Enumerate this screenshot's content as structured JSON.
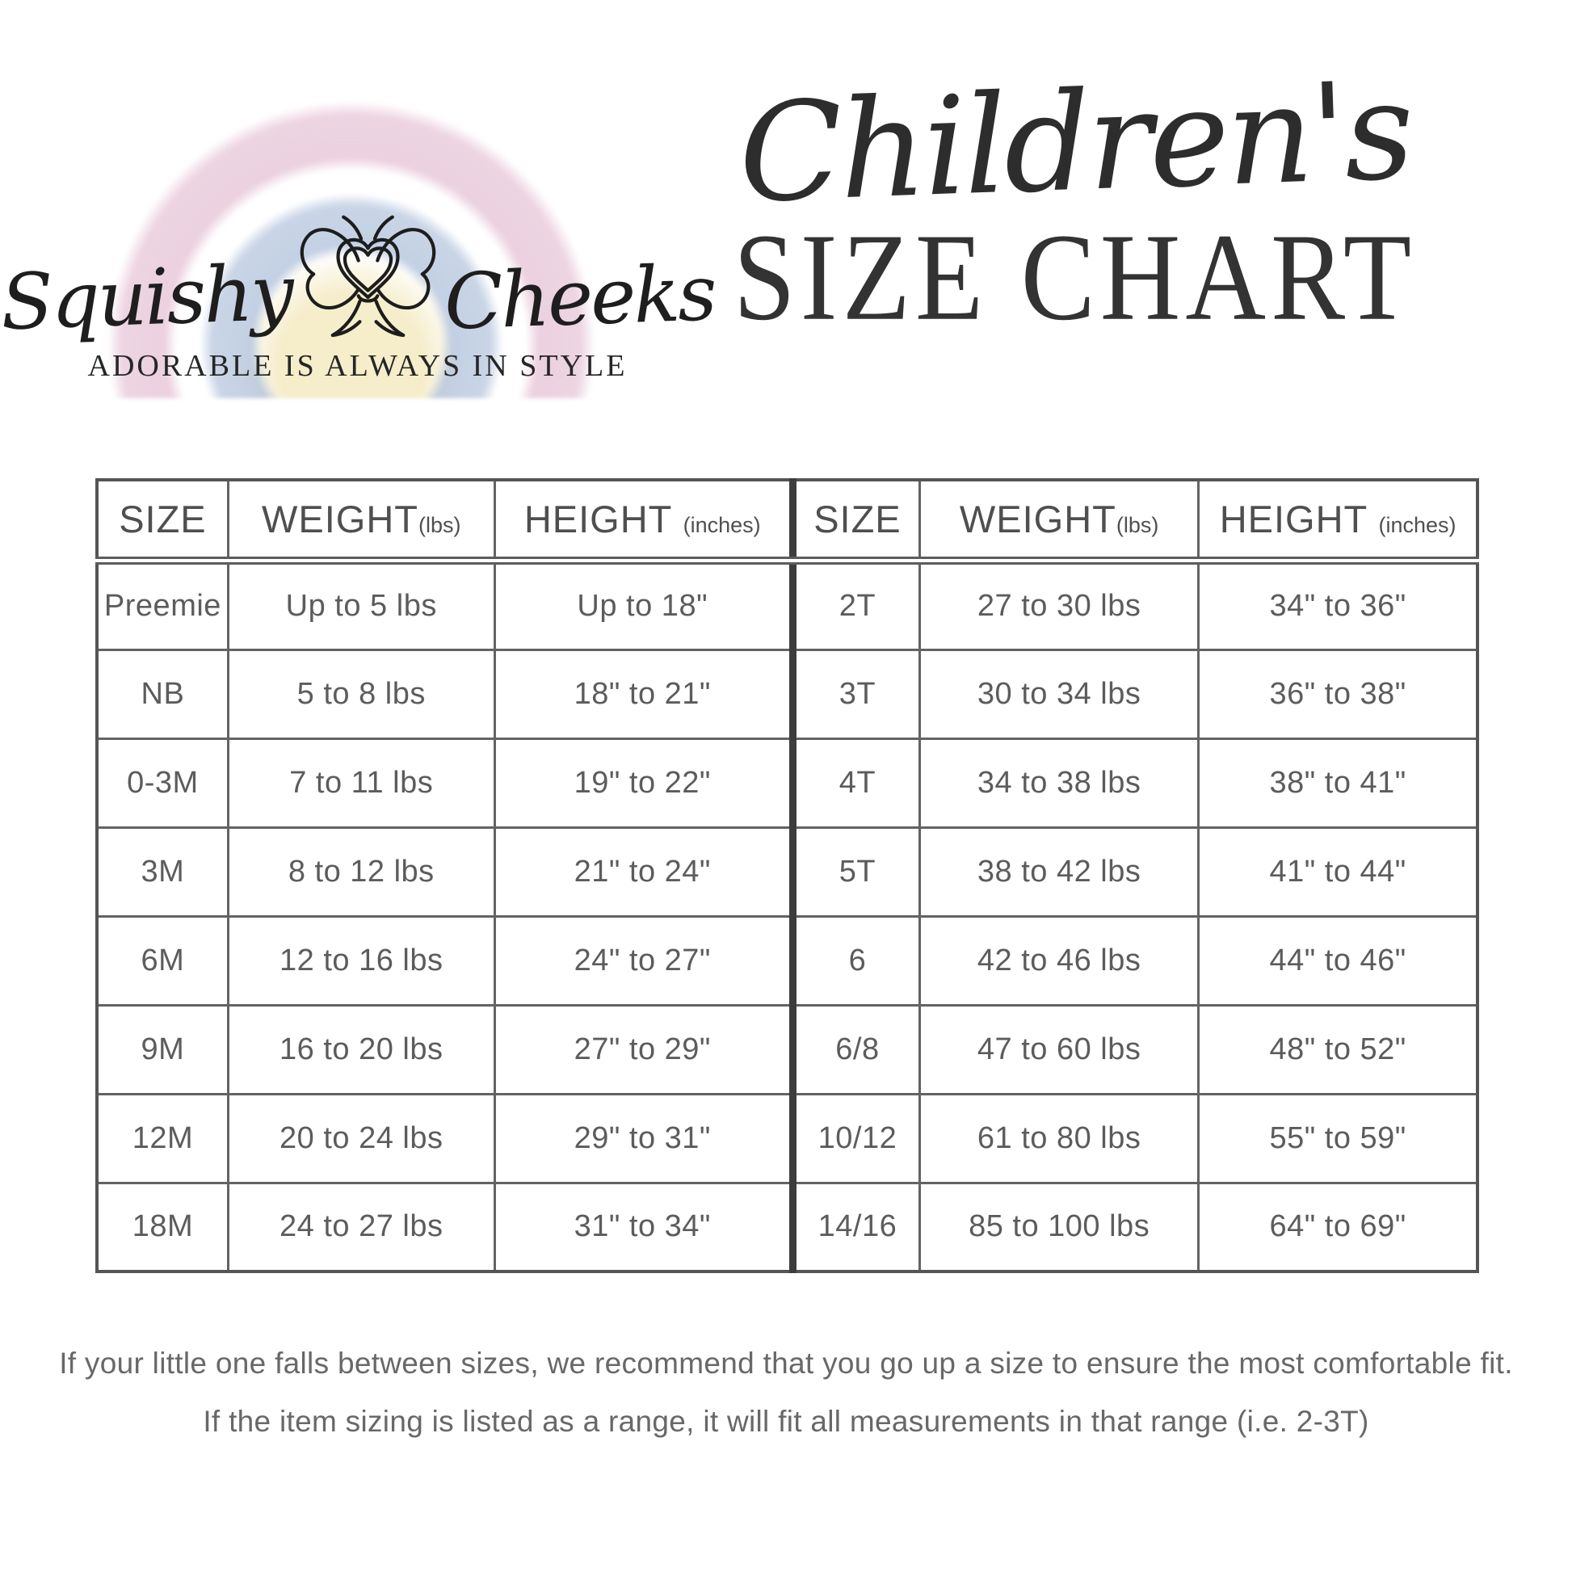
{
  "logo": {
    "brand_left": "Squishy",
    "brand_right": "Cheeks",
    "tagline": "ADORABLE IS ALWAYS IN STYLE",
    "rainbow_colors": {
      "outer_pink": "#e6c4d6",
      "middle_blue": "#acbed9",
      "inner_yellow": "#f0e2aa"
    }
  },
  "title": {
    "script": "Children's",
    "main": "SIZE CHART"
  },
  "table": {
    "header": {
      "size": "SIZE",
      "weight": "WEIGHT",
      "weight_unit": "(lbs)",
      "height": "HEIGHT",
      "height_unit": "(inches)"
    },
    "left_rows": [
      {
        "size": "Preemie",
        "weight": "Up to 5 lbs",
        "height": "Up to 18\""
      },
      {
        "size": "NB",
        "weight": "5 to 8 lbs",
        "height": "18\" to 21\""
      },
      {
        "size": "0-3M",
        "weight": "7 to 11 lbs",
        "height": "19\" to 22\""
      },
      {
        "size": "3M",
        "weight": "8 to 12 lbs",
        "height": "21\" to 24\""
      },
      {
        "size": "6M",
        "weight": "12 to 16 lbs",
        "height": "24\" to 27\""
      },
      {
        "size": "9M",
        "weight": "16 to 20 lbs",
        "height": "27\" to 29\""
      },
      {
        "size": "12M",
        "weight": "20 to 24 lbs",
        "height": "29\" to 31\""
      },
      {
        "size": "18M",
        "weight": "24 to 27 lbs",
        "height": "31\" to 34\""
      }
    ],
    "right_rows": [
      {
        "size": "2T",
        "weight": "27 to 30 lbs",
        "height": "34\" to 36\""
      },
      {
        "size": "3T",
        "weight": "30 to 34 lbs",
        "height": "36\" to 38\""
      },
      {
        "size": "4T",
        "weight": "34 to 38 lbs",
        "height": "38\" to 41\""
      },
      {
        "size": "5T",
        "weight": "38 to 42 lbs",
        "height": "41\" to 44\""
      },
      {
        "size": "6",
        "weight": "42 to 46 lbs",
        "height": "44\" to 46\""
      },
      {
        "size": "6/8",
        "weight": "47 to 60 lbs",
        "height": "48\" to 52\""
      },
      {
        "size": "10/12",
        "weight": "61 to 80 lbs",
        "height": "55\" to 59\""
      },
      {
        "size": "14/16",
        "weight": "85 to 100 lbs",
        "height": "64\" to 69\""
      }
    ]
  },
  "footer": {
    "line1": "If your little one falls between sizes, we recommend that you go up a size to ensure the most comfortable fit.",
    "line2": "If the item sizing is listed as a range, it will fit all measurements in that range (i.e. 2-3T)"
  }
}
